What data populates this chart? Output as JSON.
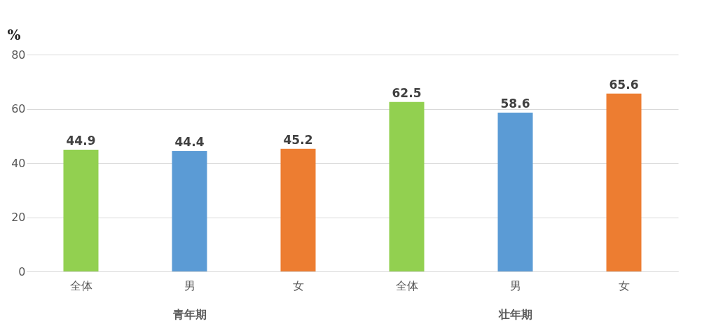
{
  "chart_data": {
    "type": "bar",
    "ylabel": "%",
    "categories": [
      "全体",
      "男",
      "女",
      "全体",
      "男",
      "女"
    ],
    "values": [
      44.9,
      44.4,
      45.2,
      62.5,
      58.6,
      65.6
    ],
    "colors": [
      "#92d050",
      "#5b9bd5",
      "#ed7d31",
      "#92d050",
      "#5b9bd5",
      "#ed7d31"
    ],
    "ylim": [
      0,
      80
    ],
    "yticks": [
      0,
      20,
      40,
      60,
      80
    ],
    "grid": "y",
    "data_labels": true,
    "annotations": [
      "青年期",
      "壮年期"
    ]
  }
}
